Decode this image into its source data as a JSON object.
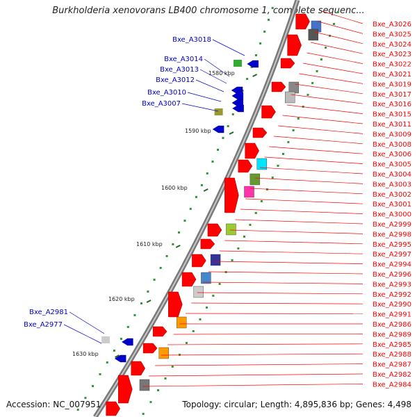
{
  "title": "Burkholderia xenovorans LB400 chromosome 1, complete sequenc...",
  "accession": "Accession: NC_007951",
  "stats": "Topology: circular; Length: 4,895,836 bp; Genes: 4,498",
  "colors": {
    "forward_gene": "#ff0000",
    "reverse_gene": "#0000cc",
    "backbone": "#888888",
    "tick": "#339933"
  },
  "scale_labels": [
    "1580 kbp",
    "1590 kbp",
    "1600 kbp",
    "1610 kbp",
    "1620 kbp",
    "1630 kbp"
  ],
  "left_genes": [
    "Bxe_A3018",
    "Bxe_A3014",
    "Bxe_A3013",
    "Bxe_A3012",
    "Bxe_A3010",
    "Bxe_A3007",
    "Bxe_A2981",
    "Bxe_A2977"
  ],
  "right_genes": [
    "Bxe_A3026",
    "Bxe_A3025",
    "Bxe_A3024",
    "Bxe_A3023",
    "Bxe_A3022",
    "Bxe_A3021",
    "Bxe_A3019",
    "Bxe_A3017",
    "Bxe_A3016",
    "Bxe_A3015",
    "Bxe_A3011",
    "Bxe_A3009",
    "Bxe_A3008",
    "Bxe_A3006",
    "Bxe_A3005",
    "Bxe_A3004",
    "Bxe_A3003",
    "Bxe_A3002",
    "Bxe_A3001",
    "Bxe_A3000",
    "Bxe_A2999",
    "Bxe_A2998",
    "Bxe_A2995",
    "Bxe_A2997",
    "Bxe_A2994",
    "Bxe_A2996",
    "Bxe_A2993",
    "Bxe_A2992",
    "Bxe_A2990",
    "Bxe_A2991",
    "Bxe_A2986",
    "Bxe_A2989",
    "Bxe_A2985",
    "Bxe_A2988",
    "Bxe_A2987",
    "Bxe_A2982",
    "Bxe_A2984"
  ]
}
